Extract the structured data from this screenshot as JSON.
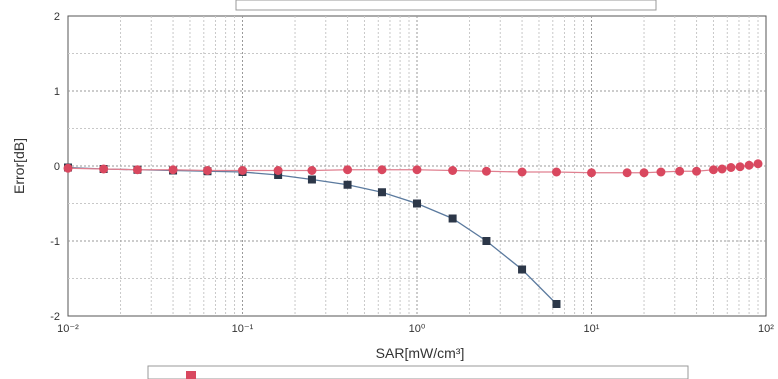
{
  "chart_data": {
    "type": "line",
    "xlabel": "SAR[mW/cm³]",
    "ylabel": "Error[dB]",
    "xscale": "log",
    "xlim": [
      0.01,
      100
    ],
    "ylim": [
      -2,
      2
    ],
    "yticks": [
      "2",
      "1",
      "0",
      "-1",
      "-2"
    ],
    "xticks": [
      "10⁻²",
      "10⁻¹",
      "10⁰",
      "10¹",
      "10²"
    ],
    "grid": true,
    "legend_position": "bottom",
    "series": [
      {
        "color": "#2c3748",
        "line_color": "#5b7a9e",
        "marker": "square",
        "x": [
          0.01,
          0.016,
          0.025,
          0.04,
          0.063,
          0.1,
          0.16,
          0.25,
          0.4,
          0.63,
          1.0,
          1.6,
          2.5,
          4.0,
          6.3
        ],
        "y": [
          -0.02,
          -0.04,
          -0.05,
          -0.06,
          -0.07,
          -0.08,
          -0.12,
          -0.18,
          -0.25,
          -0.35,
          -0.5,
          -0.7,
          -1.0,
          -1.38,
          -1.84
        ]
      },
      {
        "color": "#d9485f",
        "line_color": "#e08090",
        "marker": "circle",
        "x": [
          0.01,
          0.016,
          0.025,
          0.04,
          0.063,
          0.1,
          0.16,
          0.25,
          0.4,
          0.63,
          1.0,
          1.6,
          2.5,
          4.0,
          6.3,
          10,
          16,
          20,
          25,
          32,
          40,
          50,
          56,
          63,
          71,
          80,
          90
        ],
        "y": [
          -0.03,
          -0.04,
          -0.05,
          -0.05,
          -0.06,
          -0.06,
          -0.06,
          -0.06,
          -0.05,
          -0.05,
          -0.05,
          -0.06,
          -0.07,
          -0.08,
          -0.08,
          -0.09,
          -0.09,
          -0.09,
          -0.08,
          -0.07,
          -0.07,
          -0.05,
          -0.04,
          -0.02,
          -0.01,
          0.01,
          0.03
        ]
      }
    ]
  }
}
